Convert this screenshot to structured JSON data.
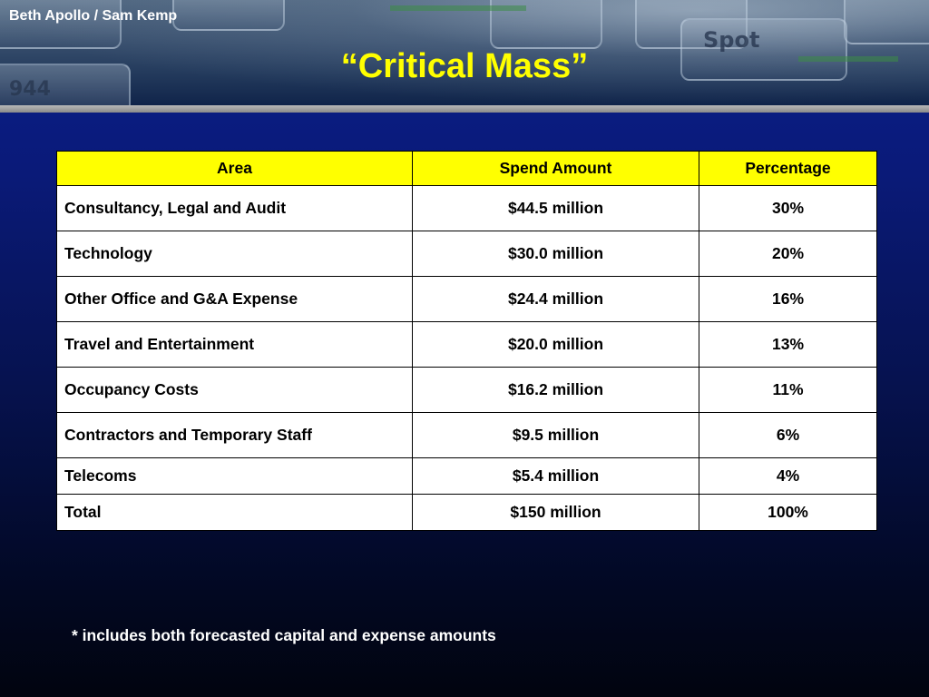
{
  "header": {
    "authors": "Beth Apollo / Sam Kemp",
    "title": "“Critical Mass”"
  },
  "table": {
    "columns": [
      "Area",
      "Spend Amount",
      "Percentage"
    ],
    "rows": [
      {
        "area": "Consultancy, Legal and Audit",
        "spend": "$44.5 million",
        "percentage": "30%"
      },
      {
        "area": "Technology",
        "spend": "$30.0 million",
        "percentage": "20%"
      },
      {
        "area": "Other Office and G&A Expense",
        "spend": "$24.4 million",
        "percentage": "16%"
      },
      {
        "area": "Travel and Entertainment",
        "spend": "$20.0 million",
        "percentage": "13%"
      },
      {
        "area": "Occupancy Costs",
        "spend": "$16.2 million",
        "percentage": "11%"
      },
      {
        "area": "Contractors and Temporary Staff",
        "spend": "$9.5 million",
        "percentage": "6%"
      },
      {
        "area": "Telecoms",
        "spend": "$5.4 million",
        "percentage": "4%"
      },
      {
        "area": "Total",
        "spend": "$150 million",
        "percentage": "100%"
      }
    ]
  },
  "footnote": "* includes both forecasted capital and expense amounts",
  "colors": {
    "background": "#0a1a78",
    "title": "#ffff00",
    "header_fill": "#ffff00",
    "text": "#ffffff"
  }
}
